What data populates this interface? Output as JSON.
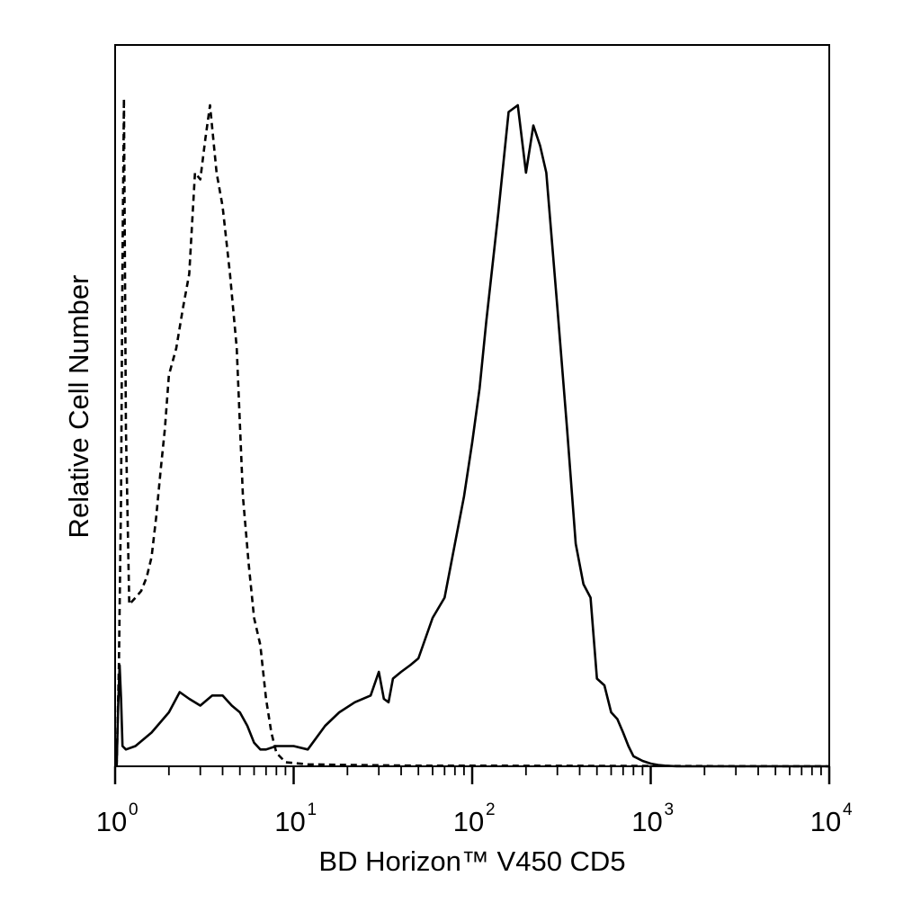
{
  "chart_data": {
    "type": "line",
    "title": "",
    "xlabel": "BD Horizon™ V450 CD5",
    "ylabel": "Relative Cell Number",
    "x_scale": "log10",
    "xlim": [
      1,
      10000
    ],
    "ylim": [
      0,
      100
    ],
    "grid": false,
    "legend": "none",
    "x_ticks": [
      {
        "base": "10",
        "exp": "0",
        "value": 1
      },
      {
        "base": "10",
        "exp": "1",
        "value": 10
      },
      {
        "base": "10",
        "exp": "2",
        "value": 100
      },
      {
        "base": "10",
        "exp": "3",
        "value": 1000
      },
      {
        "base": "10",
        "exp": "4",
        "value": 10000
      }
    ],
    "series": [
      {
        "style": "dashed",
        "color": "#000000",
        "x": [
          1.02,
          1.05,
          1.08,
          1.1,
          1.12,
          1.15,
          1.2,
          1.3,
          1.4,
          1.5,
          1.6,
          1.7,
          1.8,
          1.9,
          2.0,
          2.2,
          2.4,
          2.6,
          2.8,
          3.0,
          3.2,
          3.4,
          3.7,
          4.0,
          4.4,
          4.8,
          5.2,
          5.6,
          6.0,
          6.5,
          7.0,
          7.5,
          8.0,
          9.0,
          12,
          20,
          50,
          100,
          1000,
          10000
        ],
        "y": [
          0,
          15,
          40,
          75,
          99,
          50,
          24,
          25,
          26,
          28,
          31,
          37,
          44,
          50,
          58,
          62,
          68,
          73,
          88,
          87,
          93,
          98,
          88,
          83,
          73,
          62,
          40,
          30,
          22,
          18,
          10,
          5,
          2,
          0.6,
          0.3,
          0.2,
          0.1,
          0.1,
          0.05,
          0
        ]
      },
      {
        "style": "solid",
        "color": "#000000",
        "x": [
          1.02,
          1.04,
          1.06,
          1.08,
          1.1,
          1.15,
          1.3,
          1.6,
          2.0,
          2.3,
          2.6,
          3.0,
          3.5,
          4.0,
          4.5,
          5.0,
          5.5,
          6.0,
          6.5,
          7.0,
          8.0,
          10,
          12,
          15,
          18,
          22,
          27,
          30,
          32,
          34,
          36,
          40,
          45,
          50,
          60,
          70,
          80,
          90,
          100,
          110,
          120,
          140,
          160,
          180,
          200,
          220,
          240,
          260,
          300,
          340,
          380,
          420,
          460,
          500,
          550,
          600,
          650,
          700,
          750,
          800,
          900,
          1000,
          1100,
          1200,
          1400,
          2000,
          5000,
          10000
        ],
        "y": [
          0,
          9,
          15,
          10,
          3,
          2.5,
          3,
          5,
          8,
          11,
          10,
          9,
          10.5,
          10.5,
          9,
          8,
          6,
          3.5,
          2.5,
          2.5,
          3,
          3,
          2.5,
          6,
          8,
          9.5,
          10.5,
          14,
          10,
          9.5,
          13,
          14,
          15,
          16,
          22,
          25,
          33,
          40,
          48,
          56,
          66,
          82,
          97,
          98,
          88,
          95,
          92,
          88,
          68,
          50,
          33,
          27,
          25,
          13,
          12,
          8,
          7,
          5,
          3,
          1.5,
          0.8,
          0.4,
          0.2,
          0.1,
          0,
          0,
          0,
          0
        ]
      }
    ]
  }
}
